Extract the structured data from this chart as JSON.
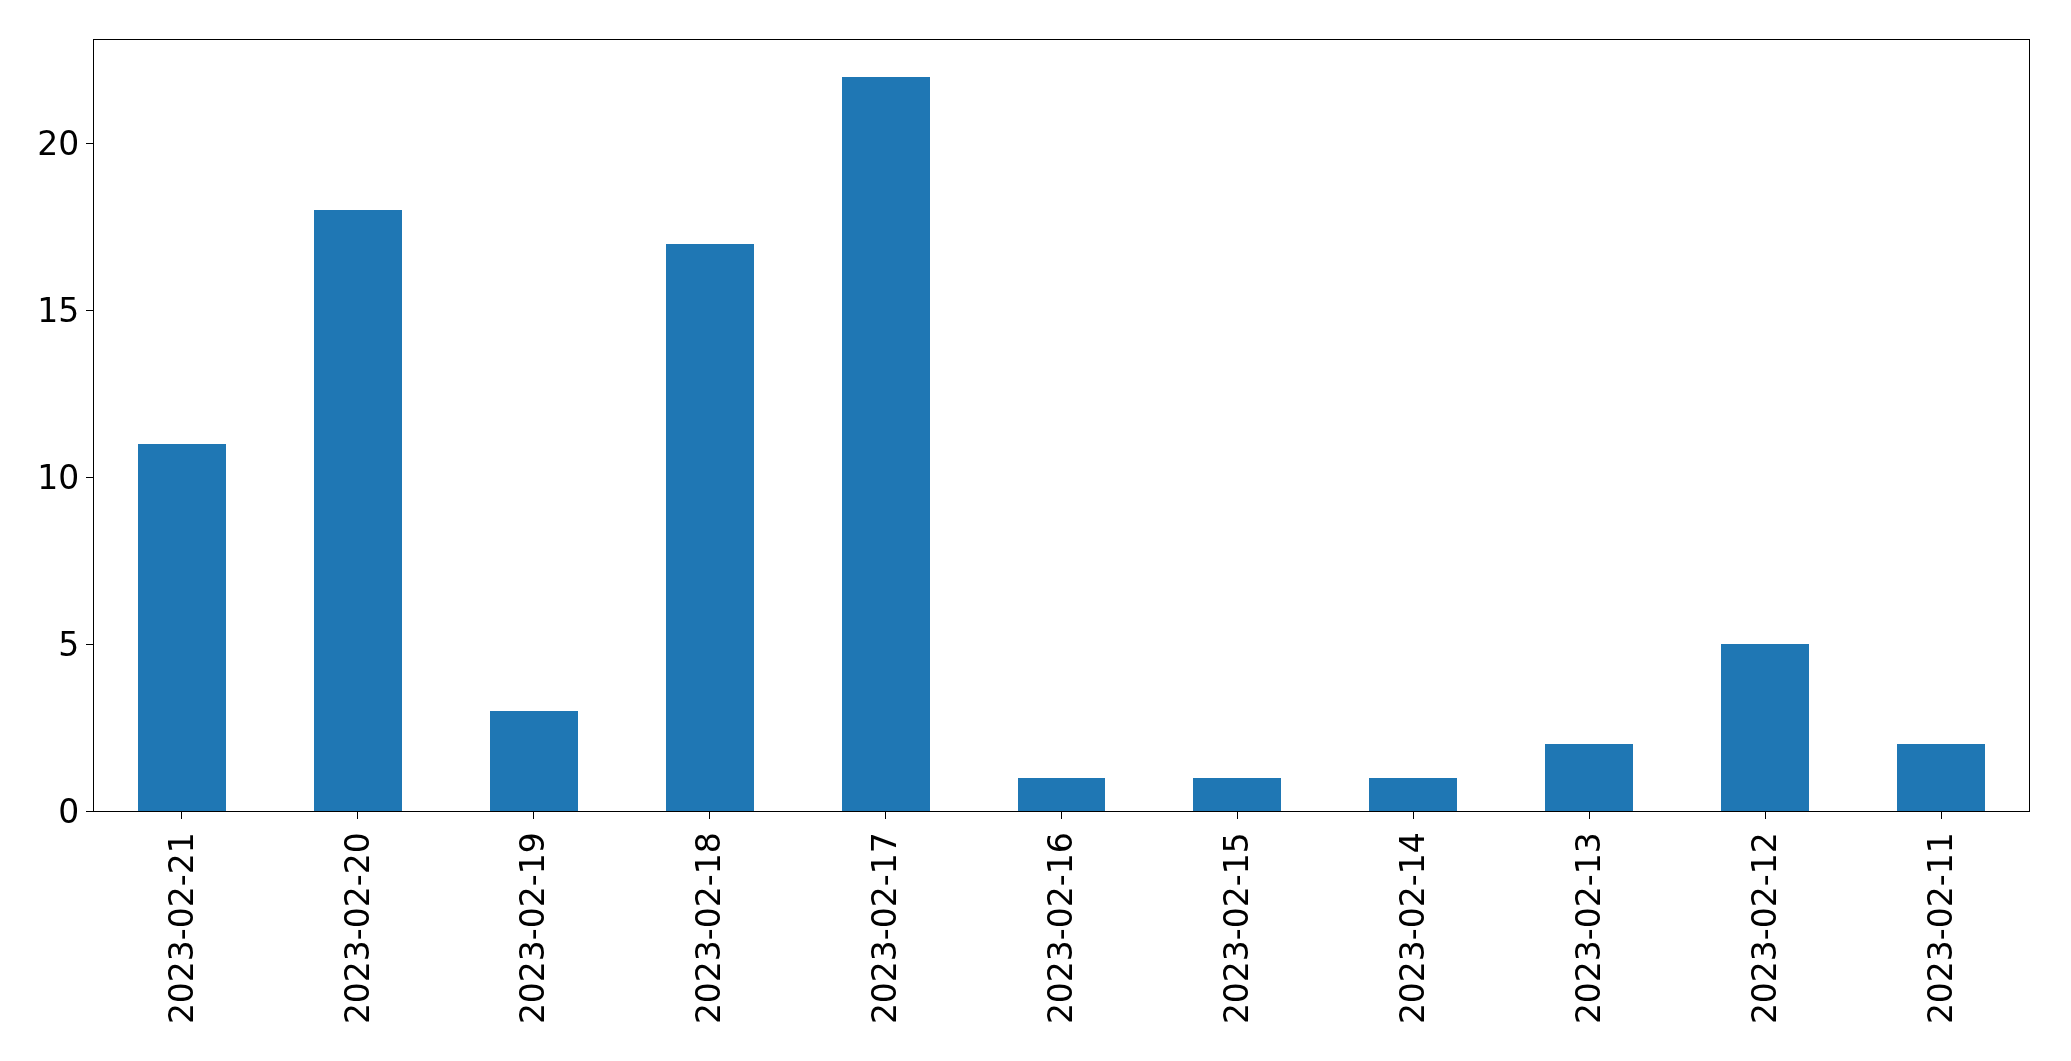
{
  "chart_data": {
    "type": "bar",
    "categories": [
      "2023-02-21",
      "2023-02-20",
      "2023-02-19",
      "2023-02-18",
      "2023-02-17",
      "2023-02-16",
      "2023-02-15",
      "2023-02-14",
      "2023-02-13",
      "2023-02-12",
      "2023-02-11"
    ],
    "values": [
      11,
      18,
      3,
      17,
      22,
      1,
      1,
      1,
      2,
      5,
      2
    ],
    "color": "#1f77b4",
    "ylim": [
      0,
      23.1
    ],
    "yticks": [
      0,
      5,
      10,
      15,
      20
    ]
  }
}
